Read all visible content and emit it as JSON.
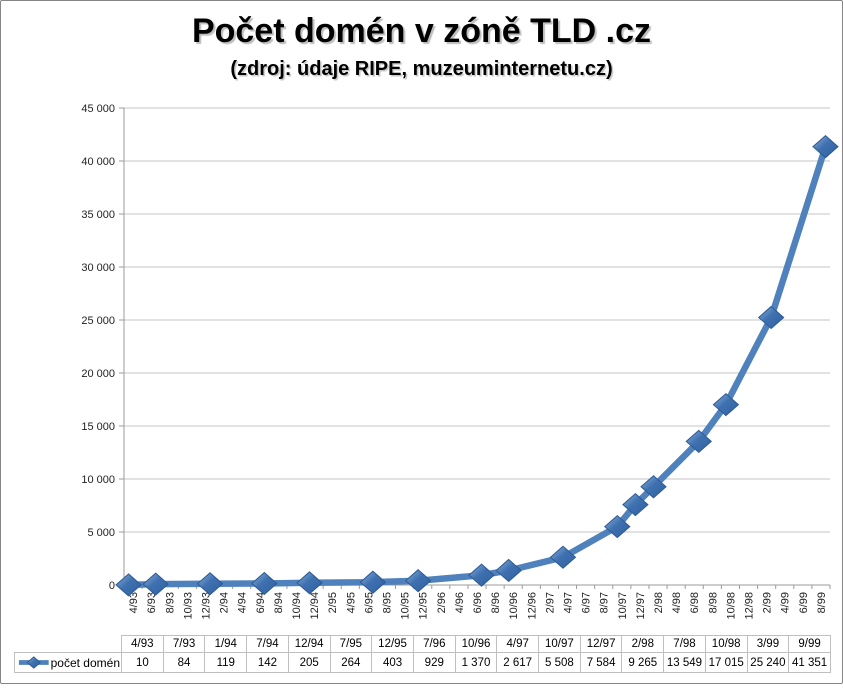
{
  "chart_data": {
    "type": "line",
    "title": "Počet domén v zóně TLD .cz",
    "subtitle": "(zdroj: údaje RIPE, muzeuminternetu.cz)",
    "xlabel": "",
    "ylabel": "",
    "ylim": [
      0,
      45000
    ],
    "y_step": 5000,
    "y_tick_labels": [
      "0",
      "5 000",
      "10 000",
      "15 000",
      "20 000",
      "25 000",
      "30 000",
      "35 000",
      "40 000",
      "45 000"
    ],
    "x_tick_labels": [
      "4/93",
      "6/93",
      "8/93",
      "10/93",
      "12/93",
      "2/94",
      "4/94",
      "6/94",
      "8/94",
      "10/94",
      "12/94",
      "2/95",
      "4/95",
      "6/95",
      "8/95",
      "10/95",
      "12/95",
      "2/96",
      "4/96",
      "6/96",
      "8/96",
      "10/96",
      "12/96",
      "2/97",
      "4/97",
      "6/97",
      "8/97",
      "10/97",
      "12/97",
      "2/98",
      "4/98",
      "6/98",
      "8/98",
      "10/98",
      "12/98",
      "2/99",
      "4/99",
      "6/99",
      "8/99"
    ],
    "x_months_total": 78,
    "x_tick_interval_months": 2,
    "grid": true,
    "legend_position": "table-left",
    "series": [
      {
        "name": "počet domén",
        "points": [
          {
            "label": "4/93",
            "month_offset": 0,
            "value": 10,
            "display": "10"
          },
          {
            "label": "7/93",
            "month_offset": 3,
            "value": 84,
            "display": "84"
          },
          {
            "label": "1/94",
            "month_offset": 9,
            "value": 119,
            "display": "119"
          },
          {
            "label": "7/94",
            "month_offset": 15,
            "value": 142,
            "display": "142"
          },
          {
            "label": "12/94",
            "month_offset": 20,
            "value": 205,
            "display": "205"
          },
          {
            "label": "7/95",
            "month_offset": 27,
            "value": 264,
            "display": "264"
          },
          {
            "label": "12/95",
            "month_offset": 32,
            "value": 403,
            "display": "403"
          },
          {
            "label": "7/96",
            "month_offset": 39,
            "value": 929,
            "display": "929"
          },
          {
            "label": "10/96",
            "month_offset": 42,
            "value": 1370,
            "display": "1 370"
          },
          {
            "label": "4/97",
            "month_offset": 48,
            "value": 2617,
            "display": "2 617"
          },
          {
            "label": "10/97",
            "month_offset": 54,
            "value": 5508,
            "display": "5 508"
          },
          {
            "label": "12/97",
            "month_offset": 56,
            "value": 7584,
            "display": "7 584"
          },
          {
            "label": "2/98",
            "month_offset": 58,
            "value": 9265,
            "display": "9 265"
          },
          {
            "label": "7/98",
            "month_offset": 63,
            "value": 13549,
            "display": "13 549"
          },
          {
            "label": "10/98",
            "month_offset": 66,
            "value": 17015,
            "display": "17 015"
          },
          {
            "label": "3/99",
            "month_offset": 71,
            "value": 25240,
            "display": "25 240"
          },
          {
            "label": "9/99",
            "month_offset": 77,
            "value": 41351,
            "display": "41 351"
          }
        ]
      }
    ],
    "colors": {
      "line": "#4F81BD",
      "marker_fill_light": "#8FB2DC",
      "marker_fill_mid": "#3F71B0",
      "marker_fill_dark": "#2F5F9E",
      "marker_stroke": "#2D5A94",
      "gridline": "#C6C6C6",
      "axis": "#9B9B9B",
      "axis_text": "#1F1F1F",
      "table_border": "#BFBFBF",
      "frame_border": "#858585",
      "background": "#FFFFFF"
    }
  }
}
